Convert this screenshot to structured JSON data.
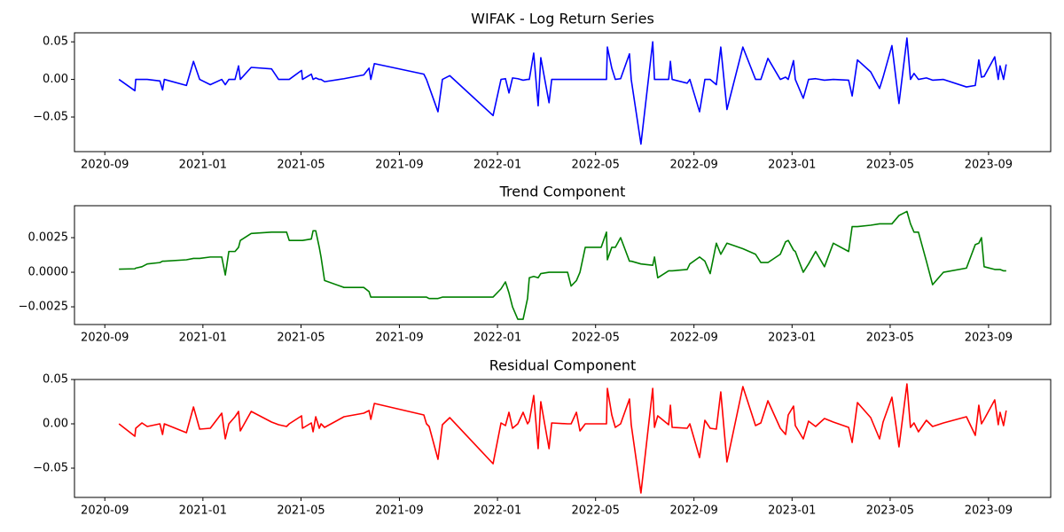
{
  "chart_data": [
    {
      "type": "line",
      "title": "WIFAK - Log Return Series",
      "color": "#0000ff",
      "x": [
        2020.715,
        2020.769,
        2020.772,
        2020.793,
        2020.811,
        2020.854,
        2020.863,
        2020.869,
        2020.944,
        2020.968,
        2020.989,
        2021.025,
        2021.064,
        2021.076,
        2021.088,
        2021.109,
        2021.121,
        2021.127,
        2021.164,
        2021.233,
        2021.257,
        2021.284,
        2021.293,
        2021.335,
        2021.338,
        2021.368,
        2021.374,
        2021.383,
        2021.395,
        2021.401,
        2021.413,
        2021.479,
        2021.546,
        2021.564,
        2021.57,
        2021.582,
        2021.75,
        2021.759,
        2021.768,
        2021.798,
        2021.813,
        2021.838,
        2021.985,
        2022.012,
        2022.027,
        2022.039,
        2022.051,
        2022.069,
        2022.087,
        2022.102,
        2022.108,
        2022.123,
        2022.138,
        2022.147,
        2022.175,
        2022.184,
        2022.238,
        2022.25,
        2022.268,
        2022.28,
        2022.298,
        2022.352,
        2022.37,
        2022.373,
        2022.388,
        2022.4,
        2022.418,
        2022.448,
        2022.454,
        2022.487,
        2022.527,
        2022.533,
        2022.544,
        2022.581,
        2022.587,
        2022.593,
        2022.644,
        2022.653,
        2022.686,
        2022.704,
        2022.722,
        2022.743,
        2022.758,
        2022.779,
        2022.833,
        2022.876,
        2022.894,
        2022.918,
        2022.96,
        2022.978,
        2022.987,
        2023.005,
        2023.011,
        2023.038,
        2023.056,
        2023.08,
        2023.11,
        2023.14,
        2023.192,
        2023.204,
        2023.222,
        2023.267,
        2023.297,
        2023.309,
        2023.339,
        2023.363,
        2023.39,
        2023.402,
        2023.414,
        2023.429,
        2023.456,
        2023.477,
        2023.514,
        2023.592,
        2023.622,
        2023.634,
        2023.643,
        2023.652,
        2023.688,
        2023.7,
        2023.706,
        2023.718,
        2023.727
      ],
      "values": [
        0.0,
        -0.015,
        0.0,
        0.0,
        0.0,
        -0.002,
        -0.014,
        0.0,
        -0.008,
        0.024,
        0.0,
        -0.007,
        0.0,
        -0.007,
        0.0,
        0.0,
        0.018,
        0.0,
        0.016,
        0.014,
        0.0,
        0.0,
        0.0,
        0.012,
        0.0,
        0.007,
        0.0,
        0.002,
        0.0,
        0.0,
        -0.003,
        0.001,
        0.006,
        0.015,
        0.0,
        0.021,
        0.007,
        0.0,
        -0.01,
        -0.043,
        0.0,
        0.005,
        -0.048,
        0.0,
        0.001,
        -0.018,
        0.002,
        0.001,
        -0.001,
        0.0,
        0.0,
        0.035,
        -0.035,
        0.029,
        -0.031,
        0.0,
        0.0,
        0.0,
        0.0,
        0.0,
        0.0,
        0.0,
        0.0,
        0.043,
        0.015,
        0.0,
        0.001,
        0.034,
        0.0,
        -0.086,
        0.05,
        0.0,
        0.0,
        0.0,
        0.024,
        0.0,
        -0.005,
        0.0,
        -0.043,
        0.0,
        0.0,
        -0.007,
        0.043,
        -0.04,
        0.043,
        0.0,
        0.0,
        0.028,
        0.0,
        0.003,
        0.0,
        0.025,
        0.0,
        -0.025,
        0.0,
        0.001,
        -0.001,
        0.0,
        -0.001,
        -0.022,
        0.026,
        0.01,
        -0.012,
        0.003,
        0.045,
        -0.032,
        0.055,
        0.0,
        0.008,
        0.0,
        0.002,
        -0.001,
        0.0,
        -0.01,
        -0.008,
        0.026,
        0.003,
        0.004,
        0.03,
        0.0,
        0.018,
        0.0,
        0.02
      ],
      "xlim": [
        2020.564,
        2023.878
      ],
      "xticks": [
        {
          "value": 2020.667,
          "label": "2020-09"
        },
        {
          "value": 2021.0,
          "label": "2021-01"
        },
        {
          "value": 2021.333,
          "label": "2021-05"
        },
        {
          "value": 2021.667,
          "label": "2021-09"
        },
        {
          "value": 2022.0,
          "label": "2022-01"
        },
        {
          "value": 2022.333,
          "label": "2022-05"
        },
        {
          "value": 2022.667,
          "label": "2022-09"
        },
        {
          "value": 2023.0,
          "label": "2023-01"
        },
        {
          "value": 2023.333,
          "label": "2023-05"
        },
        {
          "value": 2023.667,
          "label": "2023-09"
        }
      ],
      "ylim": [
        -0.096,
        0.062
      ],
      "yticks": [
        {
          "value": -0.05,
          "label": "−0.05"
        },
        {
          "value": 0,
          "label": "0.00"
        },
        {
          "value": 0.05,
          "label": "0.05"
        }
      ]
    },
    {
      "type": "line",
      "title": "Trend Component",
      "color": "#008000",
      "x": [
        2020.715,
        2020.769,
        2020.772,
        2020.793,
        2020.811,
        2020.854,
        2020.863,
        2020.869,
        2020.944,
        2020.968,
        2020.989,
        2021.025,
        2021.064,
        2021.076,
        2021.088,
        2021.109,
        2021.121,
        2021.127,
        2021.164,
        2021.233,
        2021.257,
        2021.284,
        2021.293,
        2021.335,
        2021.338,
        2021.368,
        2021.374,
        2021.383,
        2021.395,
        2021.401,
        2021.413,
        2021.479,
        2021.546,
        2021.564,
        2021.57,
        2021.582,
        2021.75,
        2021.759,
        2021.768,
        2021.798,
        2021.813,
        2021.838,
        2021.985,
        2022.012,
        2022.027,
        2022.039,
        2022.051,
        2022.069,
        2022.087,
        2022.102,
        2022.108,
        2022.123,
        2022.138,
        2022.147,
        2022.175,
        2022.184,
        2022.238,
        2022.25,
        2022.268,
        2022.28,
        2022.298,
        2022.352,
        2022.37,
        2022.373,
        2022.388,
        2022.4,
        2022.418,
        2022.448,
        2022.454,
        2022.487,
        2022.527,
        2022.533,
        2022.544,
        2022.581,
        2022.587,
        2022.593,
        2022.644,
        2022.653,
        2022.686,
        2022.704,
        2022.722,
        2022.743,
        2022.758,
        2022.779,
        2022.833,
        2022.876,
        2022.894,
        2022.918,
        2022.96,
        2022.978,
        2022.987,
        2023.005,
        2023.011,
        2023.038,
        2023.056,
        2023.08,
        2023.11,
        2023.14,
        2023.192,
        2023.204,
        2023.222,
        2023.267,
        2023.297,
        2023.309,
        2023.339,
        2023.363,
        2023.39,
        2023.402,
        2023.414,
        2023.429,
        2023.456,
        2023.477,
        2023.514,
        2023.592,
        2023.622,
        2023.634,
        2023.643,
        2023.652,
        2023.688,
        2023.7,
        2023.706,
        2023.718,
        2023.727
      ],
      "values": [
        0.00022,
        0.00025,
        0.0003,
        0.0004,
        0.0006,
        0.0007,
        0.0008,
        0.0008,
        0.0009,
        0.001,
        0.001,
        0.0011,
        0.0011,
        -0.0002,
        0.0015,
        0.0015,
        0.0018,
        0.0023,
        0.0028,
        0.0029,
        0.0029,
        0.0029,
        0.0023,
        0.0023,
        0.0023,
        0.0024,
        0.003,
        0.003,
        0.0018,
        0.0011,
        -0.0006,
        -0.0011,
        -0.0011,
        -0.0014,
        -0.0018,
        -0.0018,
        -0.0018,
        -0.0018,
        -0.0019,
        -0.0019,
        -0.0018,
        -0.0018,
        -0.0018,
        -0.0012,
        -0.0007,
        -0.0015,
        -0.0025,
        -0.0034,
        -0.0034,
        -0.0019,
        -0.0004,
        -0.0003,
        -0.0004,
        -0.0001,
        0.0,
        0.0,
        0.0,
        -0.001,
        -0.0006,
        0.0,
        0.0018,
        0.0018,
        0.0029,
        0.0009,
        0.0018,
        0.0018,
        0.0025,
        0.0008,
        0.0008,
        0.0006,
        0.0005,
        0.0011,
        -0.0004,
        0.0001,
        0.0001,
        0.0001,
        0.0002,
        0.0006,
        0.0011,
        0.0008,
        -0.0001,
        0.0021,
        0.0013,
        0.0021,
        0.0017,
        0.0013,
        0.0007,
        0.0007,
        0.0013,
        0.0022,
        0.0023,
        0.0016,
        0.0015,
        0.0,
        0.0006,
        0.0015,
        0.0004,
        0.0021,
        0.0015,
        0.0033,
        0.0033,
        0.0034,
        0.0035,
        0.0035,
        0.0035,
        0.0041,
        0.0044,
        0.0035,
        0.0029,
        0.0029,
        0.0008,
        -0.0009,
        0.0,
        0.0003,
        0.002,
        0.0021,
        0.0025,
        0.0004,
        0.0002,
        0.0002,
        0.0002,
        0.0001,
        0.0001
      ],
      "xlim": [
        2020.564,
        2023.878
      ],
      "xticks": [
        {
          "value": 2020.667,
          "label": "2020-09"
        },
        {
          "value": 2021.0,
          "label": "2021-01"
        },
        {
          "value": 2021.333,
          "label": "2021-05"
        },
        {
          "value": 2021.667,
          "label": "2021-09"
        },
        {
          "value": 2022.0,
          "label": "2022-01"
        },
        {
          "value": 2022.333,
          "label": "2022-05"
        },
        {
          "value": 2022.667,
          "label": "2022-09"
        },
        {
          "value": 2023.0,
          "label": "2023-01"
        },
        {
          "value": 2023.333,
          "label": "2023-05"
        },
        {
          "value": 2023.667,
          "label": "2023-09"
        }
      ],
      "ylim": [
        -0.00378,
        0.00481
      ],
      "yticks": [
        {
          "value": -0.0025,
          "label": "−0.0025"
        },
        {
          "value": 0,
          "label": "0.0000"
        },
        {
          "value": 0.0025,
          "label": "0.0025"
        }
      ]
    },
    {
      "type": "line",
      "title": "Residual Component",
      "color": "#ff0000",
      "x": [
        2020.715,
        2020.769,
        2020.772,
        2020.793,
        2020.811,
        2020.854,
        2020.863,
        2020.869,
        2020.944,
        2020.968,
        2020.989,
        2021.025,
        2021.064,
        2021.076,
        2021.088,
        2021.109,
        2021.121,
        2021.127,
        2021.164,
        2021.233,
        2021.257,
        2021.284,
        2021.293,
        2021.335,
        2021.338,
        2021.368,
        2021.374,
        2021.383,
        2021.395,
        2021.401,
        2021.413,
        2021.479,
        2021.546,
        2021.564,
        2021.57,
        2021.582,
        2021.75,
        2021.759,
        2021.768,
        2021.798,
        2021.813,
        2021.838,
        2021.985,
        2022.012,
        2022.027,
        2022.039,
        2022.051,
        2022.069,
        2022.087,
        2022.102,
        2022.108,
        2022.123,
        2022.138,
        2022.147,
        2022.175,
        2022.184,
        2022.238,
        2022.25,
        2022.268,
        2022.28,
        2022.298,
        2022.352,
        2022.37,
        2022.373,
        2022.388,
        2022.4,
        2022.418,
        2022.448,
        2022.454,
        2022.487,
        2022.527,
        2022.533,
        2022.544,
        2022.581,
        2022.587,
        2022.593,
        2022.644,
        2022.653,
        2022.686,
        2022.704,
        2022.722,
        2022.743,
        2022.758,
        2022.779,
        2022.833,
        2022.876,
        2022.894,
        2022.918,
        2022.96,
        2022.978,
        2022.987,
        2023.005,
        2023.011,
        2023.038,
        2023.056,
        2023.08,
        2023.11,
        2023.14,
        2023.192,
        2023.204,
        2023.222,
        2023.267,
        2023.297,
        2023.309,
        2023.339,
        2023.363,
        2023.39,
        2023.402,
        2023.414,
        2023.429,
        2023.456,
        2023.477,
        2023.514,
        2023.592,
        2023.622,
        2023.634,
        2023.643,
        2023.652,
        2023.688,
        2023.7,
        2023.706,
        2023.718,
        2023.727
      ],
      "values": [
        0.0,
        -0.014,
        -0.005,
        0.001,
        -0.003,
        0.0,
        -0.012,
        0.0,
        -0.01,
        0.019,
        -0.006,
        -0.005,
        0.012,
        -0.017,
        0.0,
        0.008,
        0.014,
        -0.008,
        0.014,
        0.002,
        -0.001,
        -0.003,
        0.0,
        0.009,
        -0.005,
        0.001,
        -0.009,
        0.008,
        -0.005,
        0.0,
        -0.004,
        0.008,
        0.012,
        0.015,
        0.005,
        0.023,
        0.01,
        0.0,
        -0.003,
        -0.04,
        -0.001,
        0.007,
        -0.045,
        0.001,
        -0.002,
        0.013,
        -0.005,
        0.0,
        0.013,
        0.0,
        0.003,
        0.032,
        -0.028,
        0.025,
        -0.028,
        0.001,
        0.0,
        0.0,
        0.013,
        -0.008,
        0.0,
        0.0,
        0.0,
        0.04,
        0.01,
        -0.004,
        0.0,
        0.028,
        -0.001,
        -0.078,
        0.04,
        -0.004,
        0.009,
        -0.001,
        0.021,
        -0.004,
        -0.005,
        0.0,
        -0.038,
        0.004,
        -0.005,
        -0.006,
        0.036,
        -0.043,
        0.042,
        -0.002,
        0.001,
        0.026,
        -0.005,
        -0.012,
        0.01,
        0.02,
        -0.002,
        -0.017,
        0.003,
        -0.003,
        0.006,
        0.002,
        -0.004,
        -0.021,
        0.024,
        0.007,
        -0.017,
        0.002,
        0.03,
        -0.026,
        0.045,
        -0.004,
        0.001,
        -0.009,
        0.004,
        -0.003,
        0.001,
        0.008,
        -0.013,
        0.021,
        0.0,
        0.005,
        0.027,
        -0.001,
        0.013,
        -0.002,
        0.015
      ],
      "xlim": [
        2020.564,
        2023.878
      ],
      "xticks": [
        {
          "value": 2020.667,
          "label": "2020-09"
        },
        {
          "value": 2021.0,
          "label": "2021-01"
        },
        {
          "value": 2021.333,
          "label": "2021-05"
        },
        {
          "value": 2021.667,
          "label": "2021-09"
        },
        {
          "value": 2022.0,
          "label": "2022-01"
        },
        {
          "value": 2022.333,
          "label": "2022-05"
        },
        {
          "value": 2022.667,
          "label": "2022-09"
        },
        {
          "value": 2023.0,
          "label": "2023-01"
        },
        {
          "value": 2023.333,
          "label": "2023-05"
        },
        {
          "value": 2023.667,
          "label": "2023-09"
        }
      ],
      "ylim": [
        -0.083,
        0.05
      ],
      "yticks": [
        {
          "value": -0.05,
          "label": "−0.05"
        },
        {
          "value": 0,
          "label": "0.00"
        },
        {
          "value": 0.05,
          "label": "0.05"
        }
      ]
    }
  ]
}
